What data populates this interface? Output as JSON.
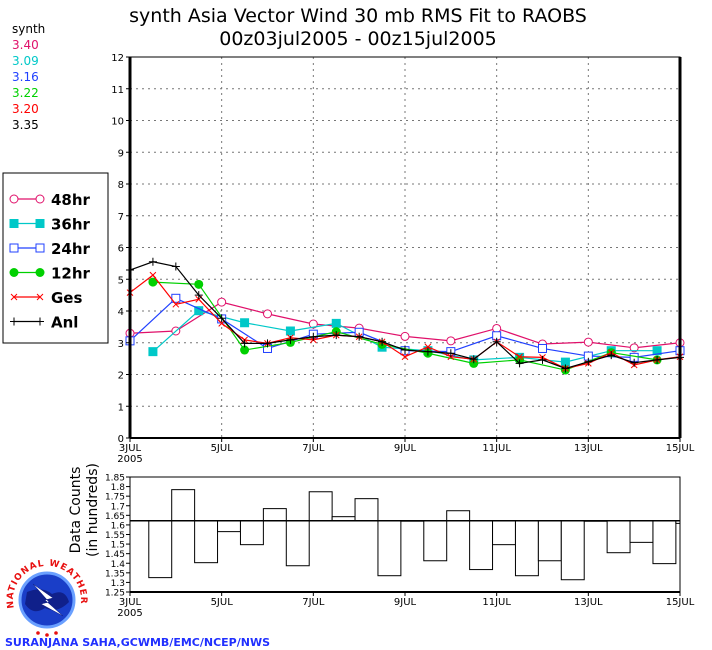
{
  "chart_data": [
    {
      "type": "line",
      "title": "synth Asia Vector Wind 30 mb RMS Fit to RAOBS",
      "subtitle": "00z03jul2005 - 00z15jul2005",
      "xlabel": "",
      "ylabel": "",
      "x_unit": "day of July 2005",
      "xlim": [
        3,
        15
      ],
      "ylim": [
        0,
        12
      ],
      "y_ticks": [
        "0",
        "1",
        "2",
        "3",
        "4",
        "5",
        "6",
        "7",
        "8",
        "9",
        "10",
        "11",
        "12"
      ],
      "x_ticks": [
        {
          "day": 3,
          "label": "3JUL",
          "sub": "2005"
        },
        {
          "day": 5,
          "label": "5JUL"
        },
        {
          "day": 7,
          "label": "7JUL"
        },
        {
          "day": 9,
          "label": "9JUL"
        },
        {
          "day": 11,
          "label": "11JUL"
        },
        {
          "day": 13,
          "label": "13JUL"
        },
        {
          "day": 15,
          "label": "15JUL"
        }
      ],
      "grid": true,
      "legend_placement": "left",
      "stats_header": "synth",
      "series": [
        {
          "name": "48hr",
          "color": "#e0106a",
          "marker": "open-circle",
          "mean": "3.40",
          "points": [
            [
              3,
              3.3
            ],
            [
              4,
              3.37
            ],
            [
              5,
              4.28
            ],
            [
              6,
              3.91
            ],
            [
              7,
              3.59
            ],
            [
              8,
              3.46
            ],
            [
              9,
              3.2
            ],
            [
              10,
              3.06
            ],
            [
              11,
              3.45
            ],
            [
              12,
              2.96
            ],
            [
              13,
              3.02
            ],
            [
              14,
              2.84
            ],
            [
              15,
              3.0
            ]
          ]
        },
        {
          "name": "36hr",
          "color": "#00c8c8",
          "marker": "filled-square",
          "mean": "3.09",
          "points": [
            [
              3.5,
              2.72
            ],
            [
              4.5,
              4.01
            ],
            [
              5.5,
              3.63
            ],
            [
              6.5,
              3.37
            ],
            [
              7.5,
              3.61
            ],
            [
              8.5,
              2.86
            ],
            [
              9.5,
              2.75
            ],
            [
              10.5,
              2.46
            ],
            [
              11.5,
              2.54
            ],
            [
              12.5,
              2.39
            ],
            [
              13.5,
              2.75
            ],
            [
              14.5,
              2.75
            ]
          ]
        },
        {
          "name": "24hr",
          "color": "#2040ff",
          "marker": "open-square",
          "mean": "3.16",
          "points": [
            [
              3,
              3.06
            ],
            [
              4,
              4.4
            ],
            [
              5,
              3.75
            ],
            [
              6,
              2.82
            ],
            [
              7,
              3.27
            ],
            [
              8,
              3.33
            ],
            [
              9,
              2.75
            ],
            [
              10,
              2.72
            ],
            [
              11,
              3.22
            ],
            [
              12,
              2.82
            ],
            [
              13,
              2.58
            ],
            [
              14,
              2.54
            ],
            [
              15,
              2.75
            ]
          ]
        },
        {
          "name": "12hr",
          "color": "#00d000",
          "marker": "filled-circle",
          "mean": "3.22",
          "points": [
            [
              3.5,
              4.91
            ],
            [
              4.5,
              4.84
            ],
            [
              5.5,
              2.77
            ],
            [
              6.5,
              3.01
            ],
            [
              7.5,
              3.35
            ],
            [
              8.5,
              2.95
            ],
            [
              9.5,
              2.67
            ],
            [
              10.5,
              2.35
            ],
            [
              11.5,
              2.46
            ],
            [
              12.5,
              2.14
            ],
            [
              13.5,
              2.69
            ],
            [
              14.5,
              2.46
            ]
          ]
        },
        {
          "name": "Ges",
          "color": "#ff0000",
          "marker": "x",
          "mean": "3.20",
          "points": [
            [
              3,
              4.58
            ],
            [
              3.5,
              5.13
            ],
            [
              4,
              4.21
            ],
            [
              4.5,
              4.37
            ],
            [
              5,
              3.61
            ],
            [
              5.5,
              3.09
            ],
            [
              6,
              2.98
            ],
            [
              6.5,
              3.16
            ],
            [
              7,
              3.09
            ],
            [
              7.5,
              3.24
            ],
            [
              8,
              3.19
            ],
            [
              8.5,
              3.03
            ],
            [
              9,
              2.56
            ],
            [
              9.5,
              2.87
            ],
            [
              10,
              2.56
            ],
            [
              10.5,
              2.48
            ],
            [
              11,
              3.03
            ],
            [
              11.5,
              2.56
            ],
            [
              12,
              2.54
            ],
            [
              12.5,
              2.19
            ],
            [
              13,
              2.35
            ],
            [
              13.5,
              2.69
            ],
            [
              14,
              2.3
            ],
            [
              14.5,
              2.46
            ],
            [
              15,
              2.56
            ]
          ]
        },
        {
          "name": "Anl",
          "color": "#000000",
          "marker": "plus",
          "mean": "3.35",
          "points": [
            [
              3,
              5.29
            ],
            [
              3.5,
              5.55
            ],
            [
              4,
              5.4
            ],
            [
              4.5,
              4.5
            ],
            [
              5,
              3.77
            ],
            [
              5.5,
              2.98
            ],
            [
              6,
              2.98
            ],
            [
              6.5,
              3.09
            ],
            [
              7,
              3.19
            ],
            [
              7.5,
              3.24
            ],
            [
              8,
              3.19
            ],
            [
              8.5,
              3.03
            ],
            [
              9,
              2.77
            ],
            [
              9.5,
              2.72
            ],
            [
              10,
              2.67
            ],
            [
              10.5,
              2.48
            ],
            [
              11,
              3.03
            ],
            [
              11.5,
              2.35
            ],
            [
              12,
              2.46
            ],
            [
              12.5,
              2.19
            ],
            [
              13,
              2.4
            ],
            [
              13.5,
              2.61
            ],
            [
              14,
              2.37
            ],
            [
              14.5,
              2.46
            ],
            [
              15,
              2.54
            ]
          ]
        }
      ]
    },
    {
      "type": "bar",
      "ylabel": "Data Counts",
      "ylabel2": "(in hundreds)",
      "xlim": [
        3,
        15
      ],
      "ylim": [
        1.25,
        1.85
      ],
      "reference_value": 1.622,
      "y_ticks": [
        "1.25",
        "1.3",
        "1.35",
        "1.4",
        "1.45",
        "1.5",
        "1.55",
        "1.6",
        "1.65",
        "1.7",
        "1.75",
        "1.8",
        "1.85"
      ],
      "x_ticks": [
        {
          "day": 3,
          "label": "3JUL",
          "sub": "2005"
        },
        {
          "day": 5,
          "label": "5JUL"
        },
        {
          "day": 7,
          "label": "7JUL"
        },
        {
          "day": 9,
          "label": "9JUL"
        },
        {
          "day": 11,
          "label": "11JUL"
        },
        {
          "day": 13,
          "label": "13JUL"
        },
        {
          "day": 15,
          "label": "15JUL"
        }
      ],
      "bar_start_day": 3.41,
      "bar_step_days": 0.5,
      "values": [
        1.325,
        1.784,
        1.403,
        1.565,
        1.497,
        1.685,
        1.387,
        1.773,
        1.643,
        1.737,
        1.335,
        1.622,
        1.413,
        1.674,
        1.367,
        1.497,
        1.335,
        1.413,
        1.314,
        1.619,
        1.455,
        1.509,
        1.398,
        1.608
      ]
    }
  ],
  "logo": {
    "text": "NATIONAL WEATHER SERVICE"
  },
  "credit": "SURANJANA SAHA,GCWMB/EMC/NCEP/NWS"
}
